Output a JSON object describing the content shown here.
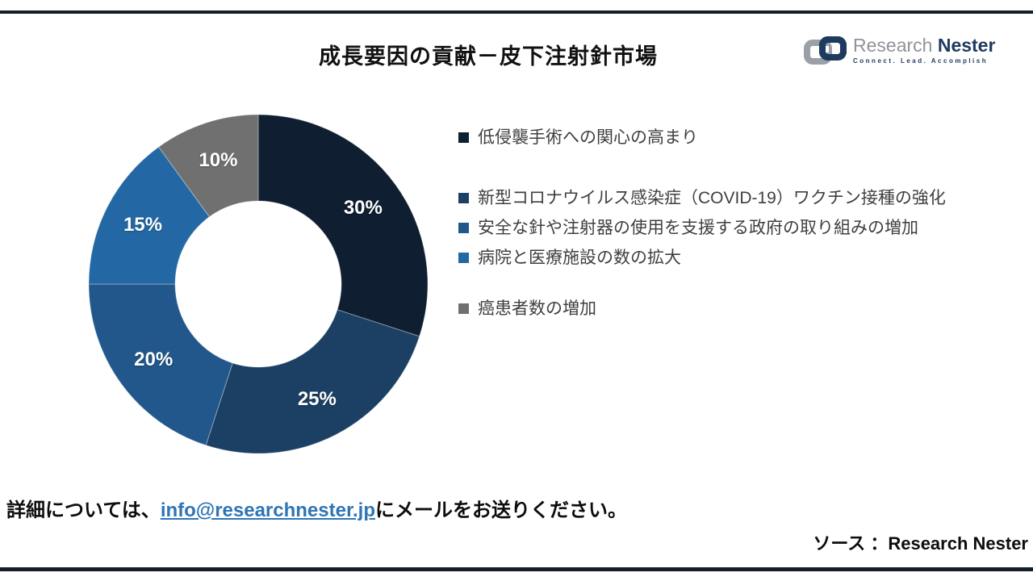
{
  "page": {
    "title": "成長要因の貢献－皮下注射針市場",
    "footer_prefix": "詳細については、",
    "footer_email": "info@researchnester.jp",
    "footer_suffix": "にメールをお送りください。",
    "source_label": "ソース ：Research Nester"
  },
  "logo": {
    "brand_primary": "Research",
    "brand_secondary": "Nester",
    "tagline": "Connect. Lead. Accomplish",
    "brand_primary_color": "#8f9499",
    "brand_secondary_color": "#1d3a5f",
    "icon": "interlocked-links-icon"
  },
  "chart_data": {
    "type": "pie",
    "subtype": "donut",
    "title": "成長要因の貢献－皮下注射針市場",
    "start_angle_deg": 0,
    "direction": "clockwise",
    "donut_hole_ratio": 0.49,
    "legend_position": "right",
    "slices": [
      {
        "label": "低侵襲手術への関心の高まり",
        "value": 30,
        "display": "30%",
        "color": "#0f1f31"
      },
      {
        "label": "新型コロナウイルス感染症（COVID-19）ワクチン接種の強化",
        "value": 25,
        "display": "25%",
        "color": "#1c4063"
      },
      {
        "label": "安全な針や注射器の使用を支援する政府の取り組みの増加",
        "value": 20,
        "display": "20%",
        "color": "#21578a"
      },
      {
        "label": "病院と医療施設の数の拡大",
        "value": 15,
        "display": "15%",
        "color": "#2368a4"
      },
      {
        "label": "癌患者数の増加",
        "value": 10,
        "display": "10%",
        "color": "#707070"
      }
    ]
  }
}
